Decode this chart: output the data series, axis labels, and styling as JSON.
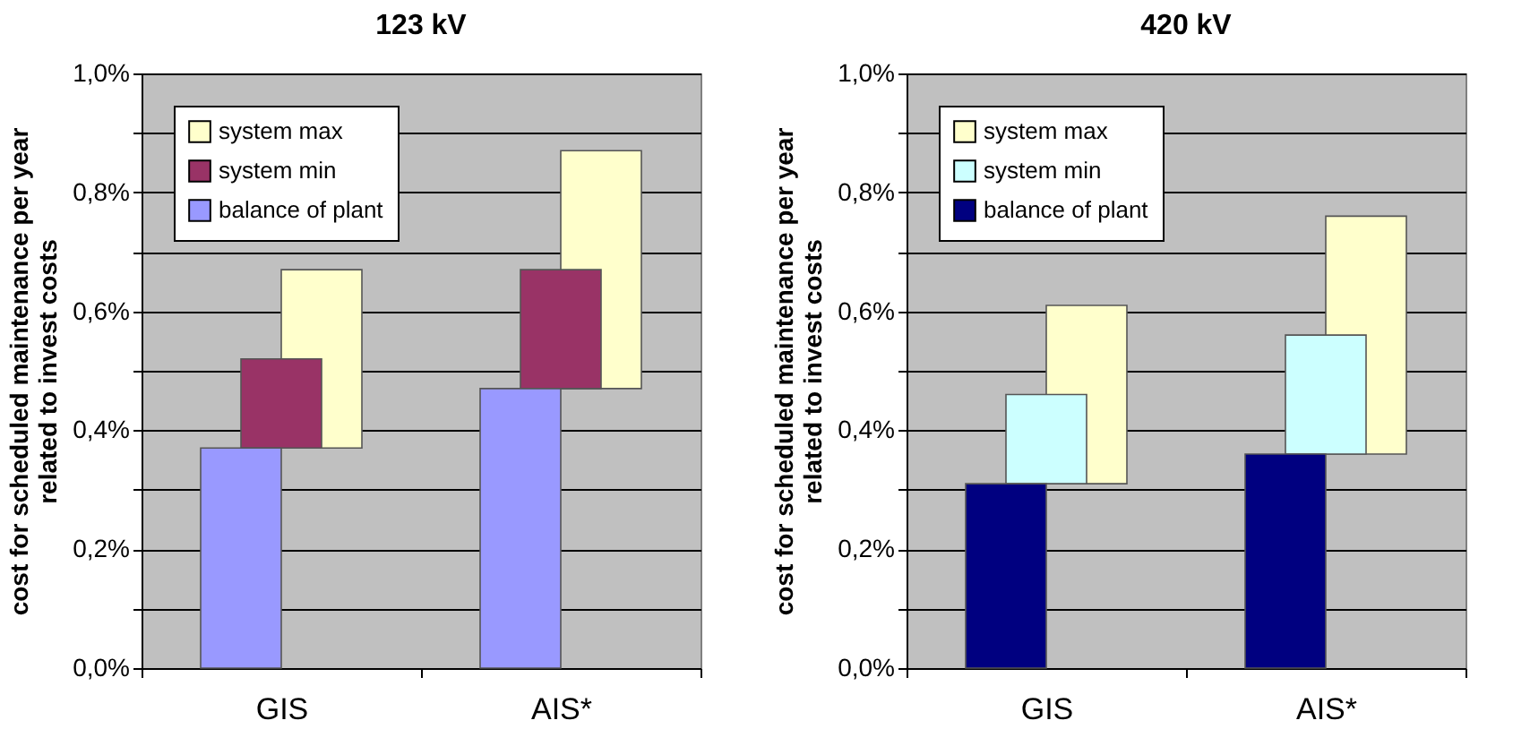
{
  "chart_data": [
    {
      "type": "bar",
      "title": "123 kV",
      "ylabel": "cost for scheduled maintenance per year related to invest costs",
      "categories": [
        "GIS",
        "AIS*"
      ],
      "series": [
        {
          "name": "balance of plant",
          "color": "#9999ff",
          "values": [
            0.37,
            0.47
          ]
        },
        {
          "name": "system min",
          "color": "#993366",
          "values": [
            0.15,
            0.2
          ],
          "base": [
            0.37,
            0.47
          ]
        },
        {
          "name": "system max",
          "color": "#ffffcc",
          "values": [
            0.3,
            0.4
          ],
          "base": [
            0.37,
            0.47
          ]
        }
      ],
      "ylim": [
        0,
        1
      ],
      "yticks": [
        {
          "value": 0,
          "label": "0,0%"
        },
        {
          "value": 0.1,
          "label": null
        },
        {
          "value": 0.2,
          "label": "0,2%"
        },
        {
          "value": 0.3,
          "label": null
        },
        {
          "value": 0.4,
          "label": "0,4%"
        },
        {
          "value": 0.5,
          "label": null
        },
        {
          "value": 0.6,
          "label": "0,6%"
        },
        {
          "value": 0.7,
          "label": null
        },
        {
          "value": 0.8,
          "label": "0,8%"
        },
        {
          "value": 0.9,
          "label": null
        },
        {
          "value": 1,
          "label": "1,0%"
        }
      ],
      "grid": "y",
      "legend": "top left"
    },
    {
      "type": "bar",
      "title": "420 kV",
      "ylabel": "cost for scheduled maintenance per year related to invest costs",
      "categories": [
        "GIS",
        "AIS*"
      ],
      "series": [
        {
          "name": "balance of plant",
          "color": "#000080",
          "values": [
            0.31,
            0.36
          ]
        },
        {
          "name": "system min",
          "color": "#ccffff",
          "values": [
            0.15,
            0.2
          ],
          "base": [
            0.31,
            0.36
          ]
        },
        {
          "name": "system max",
          "color": "#ffffcc",
          "values": [
            0.3,
            0.4
          ],
          "base": [
            0.31,
            0.36
          ]
        }
      ],
      "ylim": [
        0,
        1
      ],
      "yticks": [
        {
          "value": 0,
          "label": "0,0%"
        },
        {
          "value": 0.1,
          "label": null
        },
        {
          "value": 0.2,
          "label": "0,2%"
        },
        {
          "value": 0.3,
          "label": null
        },
        {
          "value": 0.4,
          "label": "0,4%"
        },
        {
          "value": 0.5,
          "label": null
        },
        {
          "value": 0.6,
          "label": "0,6%"
        },
        {
          "value": 0.7,
          "label": null
        },
        {
          "value": 0.8,
          "label": "0,8%"
        },
        {
          "value": 0.9,
          "label": null
        },
        {
          "value": 1,
          "label": "1,0%"
        }
      ],
      "grid": "y",
      "legend": "top left"
    }
  ]
}
